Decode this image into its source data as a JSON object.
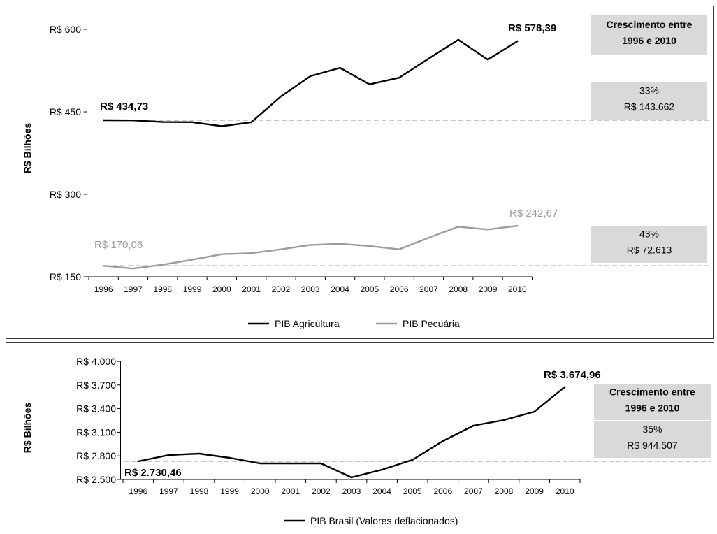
{
  "chart_data": [
    {
      "type": "line",
      "ylabel": "R$ Bilhões",
      "categories": [
        "1996",
        "1997",
        "1998",
        "1999",
        "2000",
        "2001",
        "2002",
        "2003",
        "2004",
        "2005",
        "2006",
        "2007",
        "2008",
        "2009",
        "2010"
      ],
      "ylim": [
        150,
        600
      ],
      "yticks": [
        150,
        300,
        450,
        600
      ],
      "ytick_labels": [
        "R$ 150",
        "R$ 300",
        "R$ 450",
        "R$ 600"
      ],
      "series": [
        {
          "name": "PIB Agricultura",
          "color": "#000000",
          "values": [
            434.73,
            434.5,
            431.5,
            431.2,
            424.0,
            431.0,
            478.0,
            515.0,
            530.0,
            500.0,
            512.0,
            547.0,
            581.0,
            545.0,
            578.39
          ]
        },
        {
          "name": "PIB Pecuária",
          "color": "#9b9b9b",
          "values": [
            170.06,
            165.0,
            172.0,
            181.0,
            191.0,
            193.0,
            200.0,
            208.0,
            210.0,
            206.0,
            200.0,
            221.0,
            241.0,
            236.0,
            242.67
          ]
        }
      ],
      "annotations": [
        {
          "text": "R$ 434,73",
          "series": 0,
          "index": 0
        },
        {
          "text": "R$ 578,39",
          "series": 0,
          "index": 14
        },
        {
          "text": "R$ 170,06",
          "series": 1,
          "index": 0
        },
        {
          "text": "R$ 242,67",
          "series": 1,
          "index": 14
        }
      ],
      "reference_lines": [
        434.73,
        170.06
      ],
      "growth_header": [
        "Crescimento entre",
        "1996 e 2010"
      ],
      "growth_values": [
        [
          "33%",
          "R$ 143.662"
        ],
        [
          "43%",
          "R$ 72.613"
        ]
      ],
      "legend": "bottom",
      "grid": false
    },
    {
      "type": "line",
      "ylabel": "R$ Bilhões",
      "categories": [
        "1996",
        "1997",
        "1998",
        "1999",
        "2000",
        "2001",
        "2002",
        "2003",
        "2004",
        "2005",
        "2006",
        "2007",
        "2008",
        "2009",
        "2010"
      ],
      "ylim": [
        2500,
        4000
      ],
      "yticks": [
        2500,
        2800,
        3100,
        3400,
        3700,
        4000
      ],
      "ytick_labels": [
        "R$ 2.500",
        "R$ 2.800",
        "R$ 3.100",
        "R$ 3.400",
        "R$ 3.700",
        "R$ 4.000"
      ],
      "series": [
        {
          "name": "PIB Brasil (Valores deflacionados)",
          "color": "#000000",
          "values": [
            2730.46,
            2811,
            2828,
            2775,
            2704,
            2704,
            2704,
            2527,
            2624,
            2749,
            2988,
            3183,
            3254,
            3361,
            3674.96
          ]
        }
      ],
      "annotations": [
        {
          "text": "R$ 3.674,96",
          "series": 0,
          "index": 14
        },
        {
          "text": "R$ 2.730,46",
          "series": 0,
          "index": 0
        }
      ],
      "reference_lines": [
        2730.46
      ],
      "growth_header": [
        "Crescimento entre",
        "1996 e 2010"
      ],
      "growth_values": [
        [
          "35%",
          "R$ 944.507"
        ]
      ],
      "legend": "bottom",
      "grid": false
    }
  ]
}
